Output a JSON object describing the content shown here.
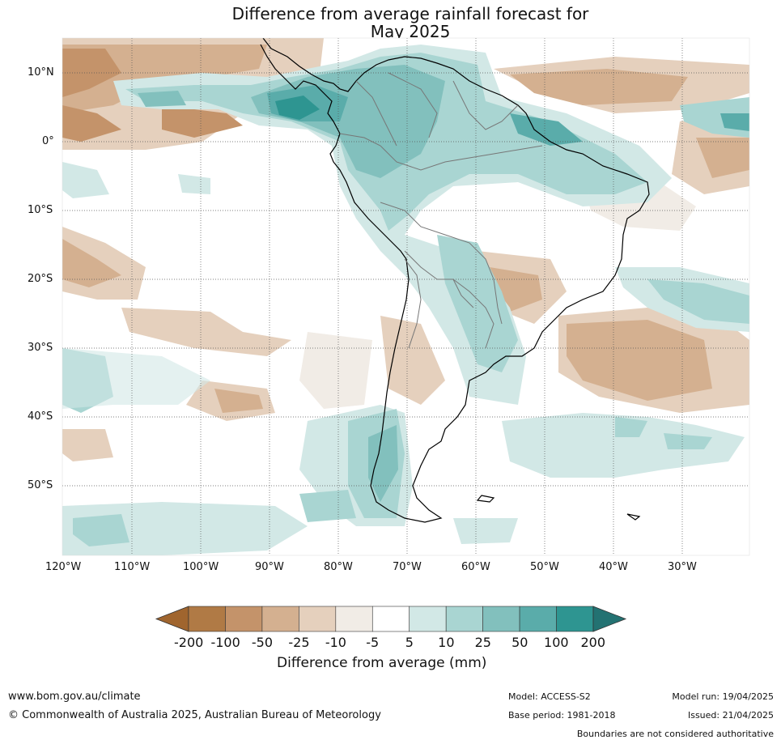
{
  "title": {
    "line1": "Difference from average rainfall forecast for",
    "line2": "May 2025"
  },
  "axes": {
    "lat_labels": [
      "10°N",
      "0°",
      "10°S",
      "20°S",
      "30°S",
      "40°S",
      "50°S"
    ],
    "lon_labels": [
      "120°W",
      "110°W",
      "100°W",
      "90°W",
      "80°W",
      "70°W",
      "60°W",
      "50°W",
      "40°W",
      "30°W"
    ]
  },
  "legend": {
    "title": "Difference from average (mm)",
    "ticks": [
      "-200",
      "-100",
      "-50",
      "-25",
      "-10",
      "-5",
      "5",
      "10",
      "25",
      "50",
      "100",
      "200"
    ],
    "colors": [
      "#a0652e",
      "#b07a45",
      "#c4936a",
      "#d4b090",
      "#e5d0bd",
      "#f1ece6",
      "#ffffff",
      "#d2e8e6",
      "#a9d5d2",
      "#82c0bd",
      "#5aacaa",
      "#2e9591",
      "#237272"
    ]
  },
  "footer": {
    "website": "www.bom.gov.au/climate",
    "copyright": "© Commonwealth of Australia 2025, Australian Bureau of Meteorology",
    "model": "Model: ACCESS-S2",
    "base_period": "Base period: 1981-2018",
    "model_run": "Model run: 19/04/2025",
    "issued": "Issued: 21/04/2025",
    "disclaimer": "Boundaries are not considered authoritative"
  }
}
